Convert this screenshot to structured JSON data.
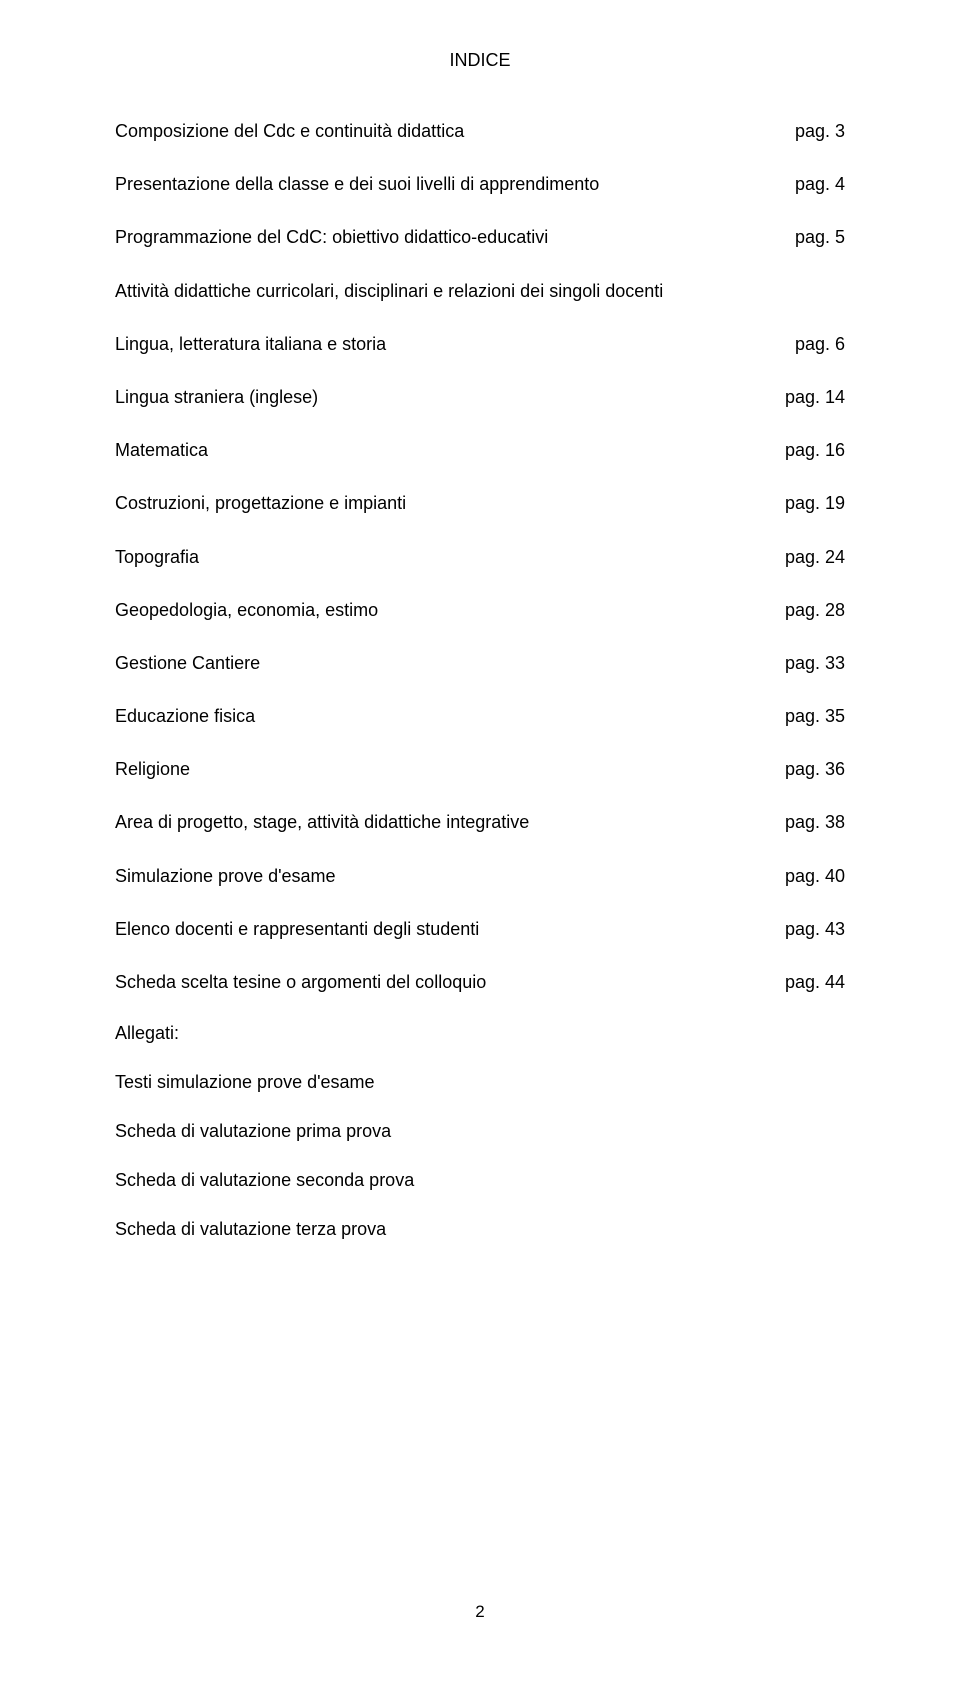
{
  "title": "INDICE",
  "entries": [
    {
      "label": "Composizione del Cdc e continuità didattica",
      "page": "pag. 3"
    },
    {
      "label": "Presentazione della classe e dei suoi livelli di apprendimento",
      "page": "pag. 4"
    },
    {
      "label": "Programmazione del CdC: obiettivo didattico-educativi",
      "page": "pag. 5"
    },
    {
      "label": "Attività didattiche curricolari, disciplinari e relazioni dei singoli docenti",
      "page": ""
    },
    {
      "label": "Lingua, letteratura italiana e storia",
      "page": "pag. 6"
    },
    {
      "label": "Lingua straniera (inglese)",
      "page": "pag. 14"
    },
    {
      "label": "Matematica",
      "page": "pag. 16"
    },
    {
      "label": "Costruzioni, progettazione e impianti",
      "page": "pag. 19"
    },
    {
      "label": "Topografia",
      "page": "pag. 24"
    },
    {
      "label": "Geopedologia, economia, estimo",
      "page": "pag. 28"
    },
    {
      "label": "Gestione Cantiere",
      "page": "pag. 33"
    },
    {
      "label": "Educazione fisica",
      "page": "pag. 35"
    },
    {
      "label": "Religione",
      "page": "pag. 36"
    },
    {
      "label": "Area di progetto, stage, attività didattiche integrative",
      "page": "pag. 38"
    },
    {
      "label": "Simulazione prove d'esame",
      "page": "pag. 40"
    },
    {
      "label": "Elenco docenti e rappresentanti degli studenti",
      "page": "pag. 43"
    },
    {
      "label": "Scheda scelta tesine o argomenti del colloquio",
      "page": "pag. 44"
    }
  ],
  "allegati": {
    "heading": "Allegati:",
    "items": [
      "Testi simulazione prove d'esame",
      "Scheda di valutazione prima prova",
      "Scheda di valutazione seconda prova",
      "Scheda di valutazione terza prova"
    ]
  },
  "pageNumber": "2"
}
